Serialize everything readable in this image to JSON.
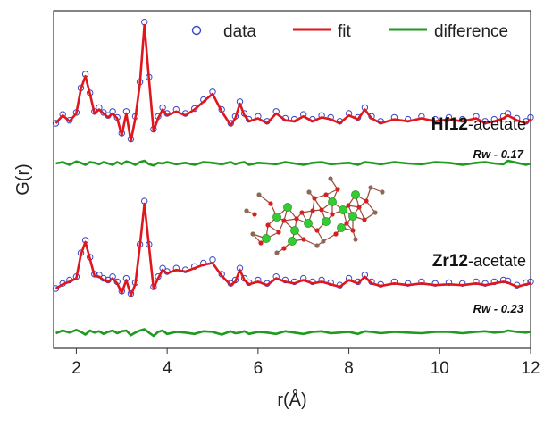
{
  "chart_data": {
    "type": "line",
    "xlabel": "r(Å)",
    "ylabel": "G(r)",
    "xlim": [
      1.5,
      12
    ],
    "xticks": [
      2,
      4,
      6,
      8,
      10,
      12
    ],
    "yticks": "none",
    "legend": {
      "placement": "top-right",
      "entries": [
        "data",
        "fit",
        "difference"
      ]
    },
    "colors": {
      "data": "#3a47c8",
      "fit": "#e0161e",
      "difference": "#1f9a1f",
      "atom_metal": "#33cc33",
      "atom_oxygen": "#d62020",
      "atom_carbon": "#8a6a55"
    },
    "panels": [
      {
        "sample_bold": "Hf12",
        "sample_rest": "-acetate",
        "rw_label": "Rw - 0.17",
        "x": [
          1.55,
          1.7,
          1.85,
          2.0,
          2.1,
          2.2,
          2.3,
          2.4,
          2.5,
          2.6,
          2.7,
          2.8,
          2.9,
          3.0,
          3.1,
          3.2,
          3.3,
          3.4,
          3.5,
          3.6,
          3.7,
          3.8,
          3.9,
          4.0,
          4.2,
          4.4,
          4.6,
          4.8,
          5.0,
          5.2,
          5.4,
          5.5,
          5.6,
          5.7,
          5.8,
          6.0,
          6.2,
          6.4,
          6.6,
          6.8,
          7.0,
          7.2,
          7.4,
          7.6,
          7.8,
          8.0,
          8.2,
          8.35,
          8.5,
          8.7,
          9.0,
          9.3,
          9.6,
          9.9,
          10.2,
          10.5,
          10.8,
          11.0,
          11.2,
          11.4,
          11.5,
          11.7,
          11.9,
          12.0
        ],
        "fit": [
          0,
          0.08,
          0.02,
          0.1,
          0.35,
          0.48,
          0.3,
          0.1,
          0.14,
          0.1,
          0.06,
          0.1,
          0.05,
          -0.12,
          0.1,
          -0.18,
          0.05,
          0.4,
          1.0,
          0.45,
          -0.08,
          0.05,
          0.14,
          0.08,
          0.12,
          0.08,
          0.14,
          0.22,
          0.3,
          0.12,
          -0.02,
          0.05,
          0.2,
          0.08,
          0.02,
          0.05,
          0.0,
          0.1,
          0.03,
          0.02,
          0.07,
          0.02,
          0.06,
          0.04,
          0.0,
          0.08,
          0.04,
          0.14,
          0.05,
          0.0,
          0.04,
          0.02,
          0.05,
          0.02,
          0.04,
          0.02,
          0.05,
          0.0,
          0.02,
          0.05,
          0.08,
          0.03,
          0.0,
          0.04
        ],
        "data": [
          0,
          0.09,
          0.03,
          0.11,
          0.36,
          0.5,
          0.31,
          0.12,
          0.16,
          0.11,
          0.08,
          0.12,
          0.06,
          -0.1,
          0.12,
          -0.16,
          0.07,
          0.42,
          1.03,
          0.47,
          -0.06,
          0.07,
          0.16,
          0.1,
          0.14,
          0.1,
          0.15,
          0.24,
          0.32,
          0.14,
          0.0,
          0.07,
          0.22,
          0.1,
          0.04,
          0.07,
          0.02,
          0.12,
          0.05,
          0.04,
          0.09,
          0.04,
          0.08,
          0.06,
          0.02,
          0.1,
          0.06,
          0.16,
          0.07,
          0.02,
          0.06,
          0.04,
          0.07,
          0.04,
          0.06,
          0.04,
          0.07,
          0.02,
          0.04,
          0.07,
          0.1,
          0.05,
          0.02,
          0.06
        ],
        "difference": [
          0,
          0.01,
          -0.01,
          0.015,
          0.005,
          -0.01,
          0.01,
          0.005,
          -0.005,
          0.01,
          0,
          -0.01,
          0.01,
          -0.005,
          0.015,
          0.005,
          -0.01,
          0.01,
          0.02,
          -0.005,
          -0.015,
          0.005,
          0,
          0.01,
          -0.005,
          0.005,
          -0.01,
          0.01,
          0.005,
          -0.005,
          0.01,
          -0.005,
          0.005,
          0.01,
          -0.01,
          0.005,
          0,
          -0.005,
          0.01,
          0,
          -0.01,
          0.005,
          0.01,
          -0.005,
          0,
          0.005,
          -0.01,
          0.01,
          0.005,
          -0.005,
          0.01,
          0,
          -0.005,
          0.01,
          0.005,
          -0.01,
          0.005,
          0.01,
          0,
          -0.005,
          0.02,
          0.005,
          -0.01,
          0
        ]
      },
      {
        "sample_bold": "Zr12",
        "sample_rest": "-acetate",
        "rw_label": "Rw - 0.23",
        "x": [
          1.55,
          1.7,
          1.85,
          2.0,
          2.1,
          2.2,
          2.3,
          2.4,
          2.5,
          2.6,
          2.7,
          2.8,
          2.9,
          3.0,
          3.1,
          3.2,
          3.3,
          3.4,
          3.5,
          3.6,
          3.7,
          3.8,
          3.9,
          4.0,
          4.2,
          4.4,
          4.6,
          4.8,
          5.0,
          5.2,
          5.4,
          5.5,
          5.6,
          5.7,
          5.8,
          6.0,
          6.2,
          6.4,
          6.6,
          6.8,
          7.0,
          7.2,
          7.4,
          7.6,
          7.8,
          8.0,
          8.2,
          8.35,
          8.5,
          8.7,
          9.0,
          9.3,
          9.6,
          9.9,
          10.2,
          10.5,
          10.8,
          11.0,
          11.2,
          11.4,
          11.5,
          11.7,
          11.9,
          12.0
        ],
        "fit": [
          0,
          0.05,
          0.08,
          0.12,
          0.4,
          0.55,
          0.35,
          0.15,
          0.14,
          0.1,
          0.08,
          0.12,
          0.06,
          -0.05,
          0.1,
          -0.08,
          0.05,
          0.5,
          1.0,
          0.5,
          0.0,
          0.12,
          0.22,
          0.18,
          0.22,
          0.2,
          0.24,
          0.28,
          0.3,
          0.15,
          0.04,
          0.08,
          0.22,
          0.1,
          0.05,
          0.08,
          0.04,
          0.12,
          0.08,
          0.06,
          0.1,
          0.06,
          0.08,
          0.05,
          0.02,
          0.1,
          0.06,
          0.14,
          0.06,
          0.03,
          0.06,
          0.04,
          0.06,
          0.04,
          0.05,
          0.04,
          0.06,
          0.04,
          0.06,
          0.08,
          0.07,
          0.02,
          0.05,
          0.06
        ],
        "data": [
          0,
          0.06,
          0.1,
          0.14,
          0.42,
          0.57,
          0.37,
          0.17,
          0.16,
          0.12,
          0.1,
          0.14,
          0.08,
          -0.03,
          0.12,
          -0.06,
          0.07,
          0.52,
          1.03,
          0.52,
          0.02,
          0.14,
          0.24,
          0.2,
          0.24,
          0.22,
          0.26,
          0.3,
          0.34,
          0.17,
          0.06,
          0.1,
          0.24,
          0.12,
          0.07,
          0.1,
          0.06,
          0.14,
          0.1,
          0.08,
          0.12,
          0.08,
          0.1,
          0.07,
          0.04,
          0.12,
          0.08,
          0.16,
          0.08,
          0.05,
          0.08,
          0.06,
          0.08,
          0.06,
          0.07,
          0.06,
          0.08,
          0.06,
          0.08,
          0.1,
          0.09,
          0.04,
          0.07,
          0.08
        ],
        "difference": [
          0,
          0.02,
          0.005,
          0.025,
          0.01,
          -0.01,
          0.02,
          0.005,
          0.015,
          -0.005,
          0.01,
          0.02,
          0,
          0.015,
          0.02,
          -0.015,
          0.005,
          0.02,
          0.03,
          0.005,
          -0.02,
          0.01,
          0.02,
          -0.005,
          0.01,
          0.005,
          -0.005,
          0.015,
          0.01,
          -0.01,
          0.015,
          0,
          0.005,
          0.015,
          -0.005,
          0.01,
          0.005,
          -0.005,
          0.015,
          0.005,
          -0.005,
          0.01,
          0.015,
          0,
          0.005,
          0.01,
          -0.005,
          0.015,
          0.01,
          0,
          0.01,
          0.005,
          0,
          0.01,
          0.01,
          0,
          0.01,
          0.015,
          0.005,
          0.01,
          0.02,
          0.01,
          0.005,
          0.01
        ]
      }
    ]
  }
}
